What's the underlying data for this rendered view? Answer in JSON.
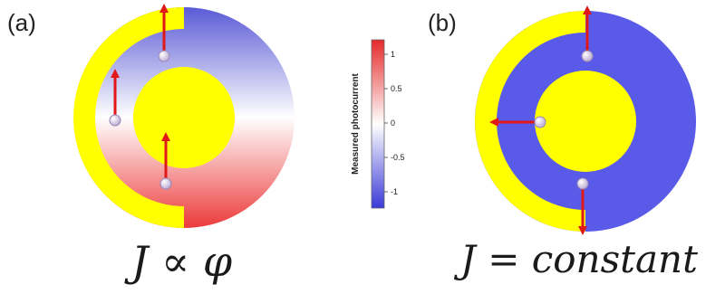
{
  "panel_a": {
    "label": "(a)",
    "formula": "J ∝ φ"
  },
  "panel_b": {
    "label": "(b)",
    "formula": "J = constant"
  },
  "colorbar": {
    "title": "Measured photocurrent",
    "ticks": [
      "1",
      "0.5",
      "0",
      "-0.5",
      "-1"
    ],
    "colors": {
      "top": "#e52a2a",
      "middle": "#ffffff",
      "bottom": "#3a3ad8"
    }
  },
  "colors": {
    "yellow": "#ffff00",
    "blue": "#5a5ae8",
    "arrow": "#e01818",
    "dot": "#d8c8e8"
  }
}
